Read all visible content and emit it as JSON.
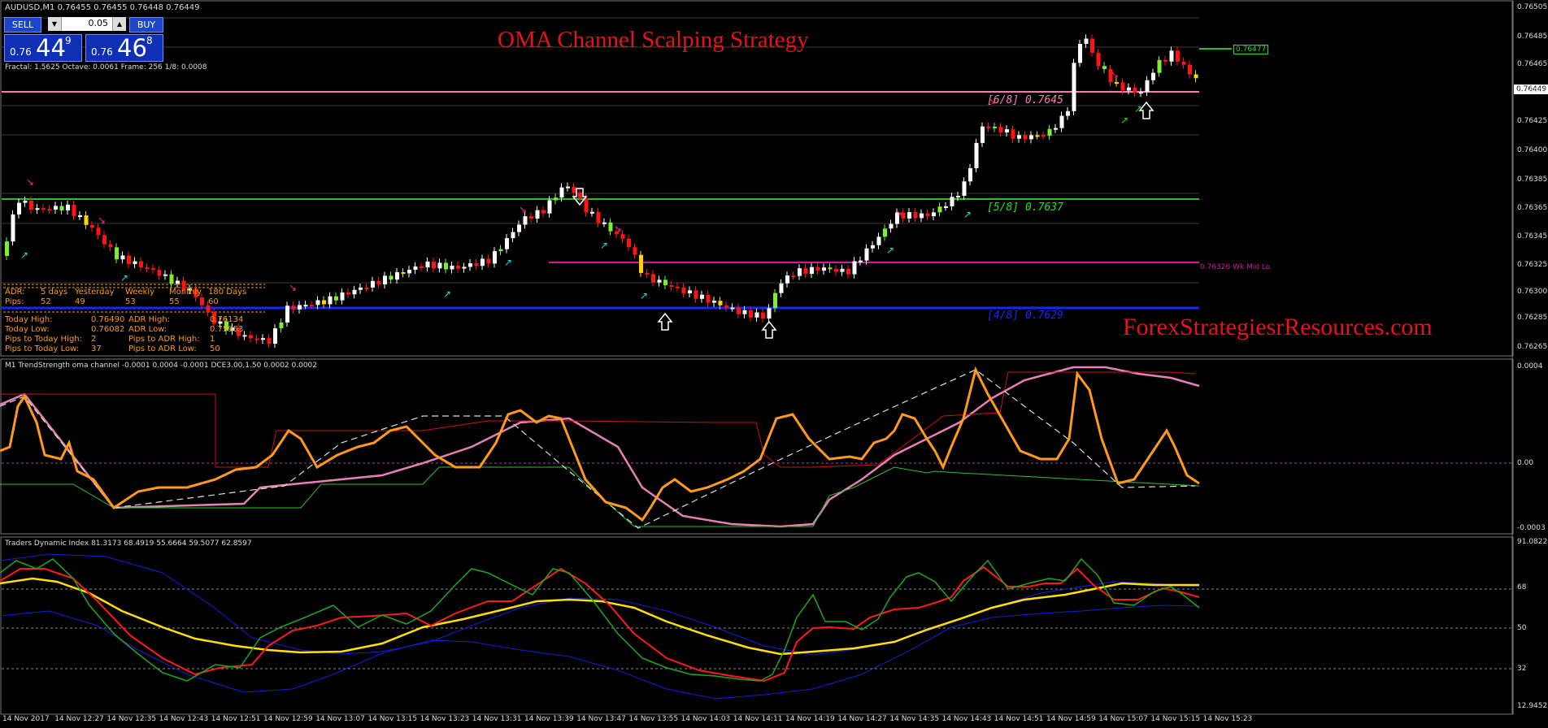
{
  "symbol_header": "AUDUSD,M1  0.76455 0.76455 0.76448 0.76449",
  "title": "OMA Channel Scalping Strategy",
  "brand": "ForexStrategiesrResources.com",
  "fractal_info": "Fractal: 1.5625   Octave: 0.0061   Frame: 256   1/8: 0.0008",
  "trade_panel": {
    "sell_label": "SELL",
    "buy_label": "BUY",
    "lot_value": "0.05",
    "sell_price_small": "0.76",
    "sell_price_big": "44",
    "sell_price_sup": "9",
    "buy_price_small": "0.76",
    "buy_price_big": "46",
    "buy_price_sup": "8"
  },
  "levels": {
    "l68": "[6/8]  0.7645",
    "l58": "[5/8]  0.7637",
    "l48": "[4/8]  0.7629",
    "wk_mid": "0.76326  Wk Mid Lo",
    "target_price": "0.76477",
    "current_price": "0.76449"
  },
  "adr": {
    "row1": [
      "ADR:",
      "5 days",
      "Yesterday",
      "Weekly",
      "Monthly",
      "180 Days"
    ],
    "row2": [
      "Pips:",
      "52",
      "49",
      "53",
      "55",
      "60"
    ],
    "stats": [
      [
        "Today High:",
        "0.76490",
        "ADR High:",
        "0.76134"
      ],
      [
        "Today Low:",
        "0.76082",
        "ADR Low:",
        "0.75953"
      ],
      [
        "Pips to Today High:",
        "2",
        "Pips to ADR High:",
        "1"
      ],
      [
        "Pips to Today Low:",
        "37",
        "Pips to ADR Low:",
        "50"
      ]
    ]
  },
  "price_axis": [
    "0.76505",
    "0.76485",
    "0.76465",
    "0.76442",
    "0.76425",
    "0.76400",
    "0.76385",
    "0.76365",
    "0.76345",
    "0.76325",
    "0.76300",
    "0.76285",
    "0.76265"
  ],
  "indicator1": {
    "label": "M1 TrendStrength oma channel -0.0001 0.0004 -0.0001  DCE3.00,1.50 0.0002 0.0002",
    "axis": [
      "0.0004",
      "0.00",
      "-0.0003"
    ]
  },
  "indicator2": {
    "label": "Traders Dynamic Index 81.3173 68.4919 55.6664 59.5077 62.8597",
    "axis": [
      "91.0822",
      "68",
      "50",
      "32",
      "12.9452"
    ]
  },
  "time_axis": [
    "14 Nov 2017",
    "14 Nov 12:27",
    "14 Nov 12:35",
    "14 Nov 12:43",
    "14 Nov 12:51",
    "14 Nov 12:59",
    "14 Nov 13:07",
    "14 Nov 13:15",
    "14 Nov 13:23",
    "14 Nov 13:31",
    "14 Nov 13:39",
    "14 Nov 13:47",
    "14 Nov 13:55",
    "14 Nov 14:03",
    "14 Nov 14:11",
    "14 Nov 14:19",
    "14 Nov 14:27",
    "14 Nov 14:35",
    "14 Nov 14:43",
    "14 Nov 14:51",
    "14 Nov 14:59",
    "14 Nov 15:07",
    "14 Nov 15:15",
    "14 Nov 15:23"
  ],
  "colors": {
    "bull": "#ffffff",
    "bear": "#ff1414",
    "green_candle": "#7cf030",
    "yellow_candle": "#ffd700",
    "level_pink": "#ff7ab5",
    "level_green": "#22c422",
    "level_blue": "#1428ff",
    "wk_mid": "#d01aa0",
    "orange_line": "#ff9a1a",
    "pink_line": "#e880b8",
    "tdi_green": "#1fa81f",
    "tdi_red": "#ff1a1a",
    "tdi_yellow": "#ffe000",
    "tdi_blue": "#1420d8"
  }
}
